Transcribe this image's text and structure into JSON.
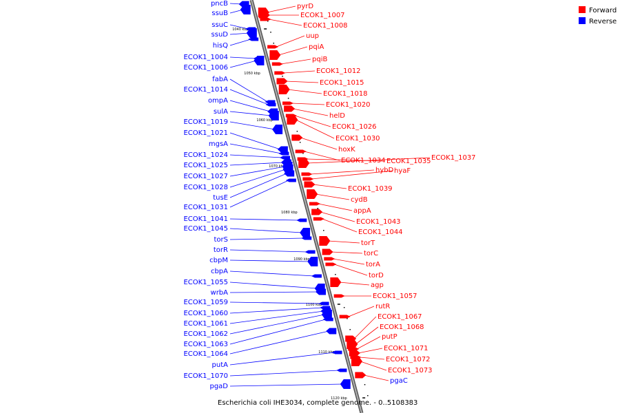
{
  "title": "Escherichia coli IHE3034, complete genome. - 0..5108383",
  "legend": [
    {
      "label": "Forward",
      "color": "#ff0000"
    },
    {
      "label": "Reverse",
      "color": "#0000ff"
    }
  ],
  "colors": {
    "forward": "#ff0000",
    "reverse": "#0000ff",
    "axis": "#808080"
  },
  "ticks": [
    "1040 kbp",
    "1050 kbp",
    "1060 kbp",
    "1070 kbp",
    "1080 kbp",
    "1090 kbp",
    "1100 kbp",
    "1110 kbp",
    "1120 kbp"
  ],
  "reverse_genes": [
    "pncB",
    "ssuB",
    "ssuC",
    "ssuD",
    "hisQ",
    "ECOK1_1004",
    "ECOK1_1006",
    "fabA",
    "ECOK1_1014",
    "ompA",
    "sulA",
    "ECOK1_1019",
    "ECOK1_1021",
    "mgsA",
    "ECOK1_1024",
    "ECOK1_1025",
    "ECOK1_1027",
    "ECOK1_1028",
    "tusE",
    "ECOK1_1031",
    "ECOK1_1041",
    "ECOK1_1045",
    "torS",
    "torR",
    "cbpM",
    "cbpA",
    "ECOK1_1055",
    "wrbA",
    "ECOK1_1059",
    "ECOK1_1060",
    "ECOK1_1061",
    "ECOK1_1062",
    "ECOK1_1063",
    "ECOK1_1064",
    "putA",
    "ECOK1_1070",
    "pgaD"
  ],
  "forward_genes": [
    "pyrD",
    "ECOK1_1007",
    "ECOK1_1008",
    "uup",
    "pqiA",
    "pqiB",
    "ECOK1_1012",
    "ECOK1_1015",
    "ECOK1_1018",
    "ECOK1_1020",
    "helD",
    "ECOK1_1026",
    "ECOK1_1030",
    "hoxK",
    "ECOK1_1034",
    "ECOK1_1035",
    "ECOK1_1037",
    "hybD",
    "hyaF",
    "ECOK1_1039",
    "cydB",
    "appA",
    "ECOK1_1043",
    "ECOK1_1044",
    "torT",
    "torC",
    "torA",
    "torD",
    "agp",
    "ECOK1_1057",
    "rutR",
    "ECOK1_1067",
    "ECOK1_1068",
    "putP",
    "ECOK1_1071",
    "ECOK1_1072",
    "ECOK1_1073",
    "pgaC"
  ]
}
